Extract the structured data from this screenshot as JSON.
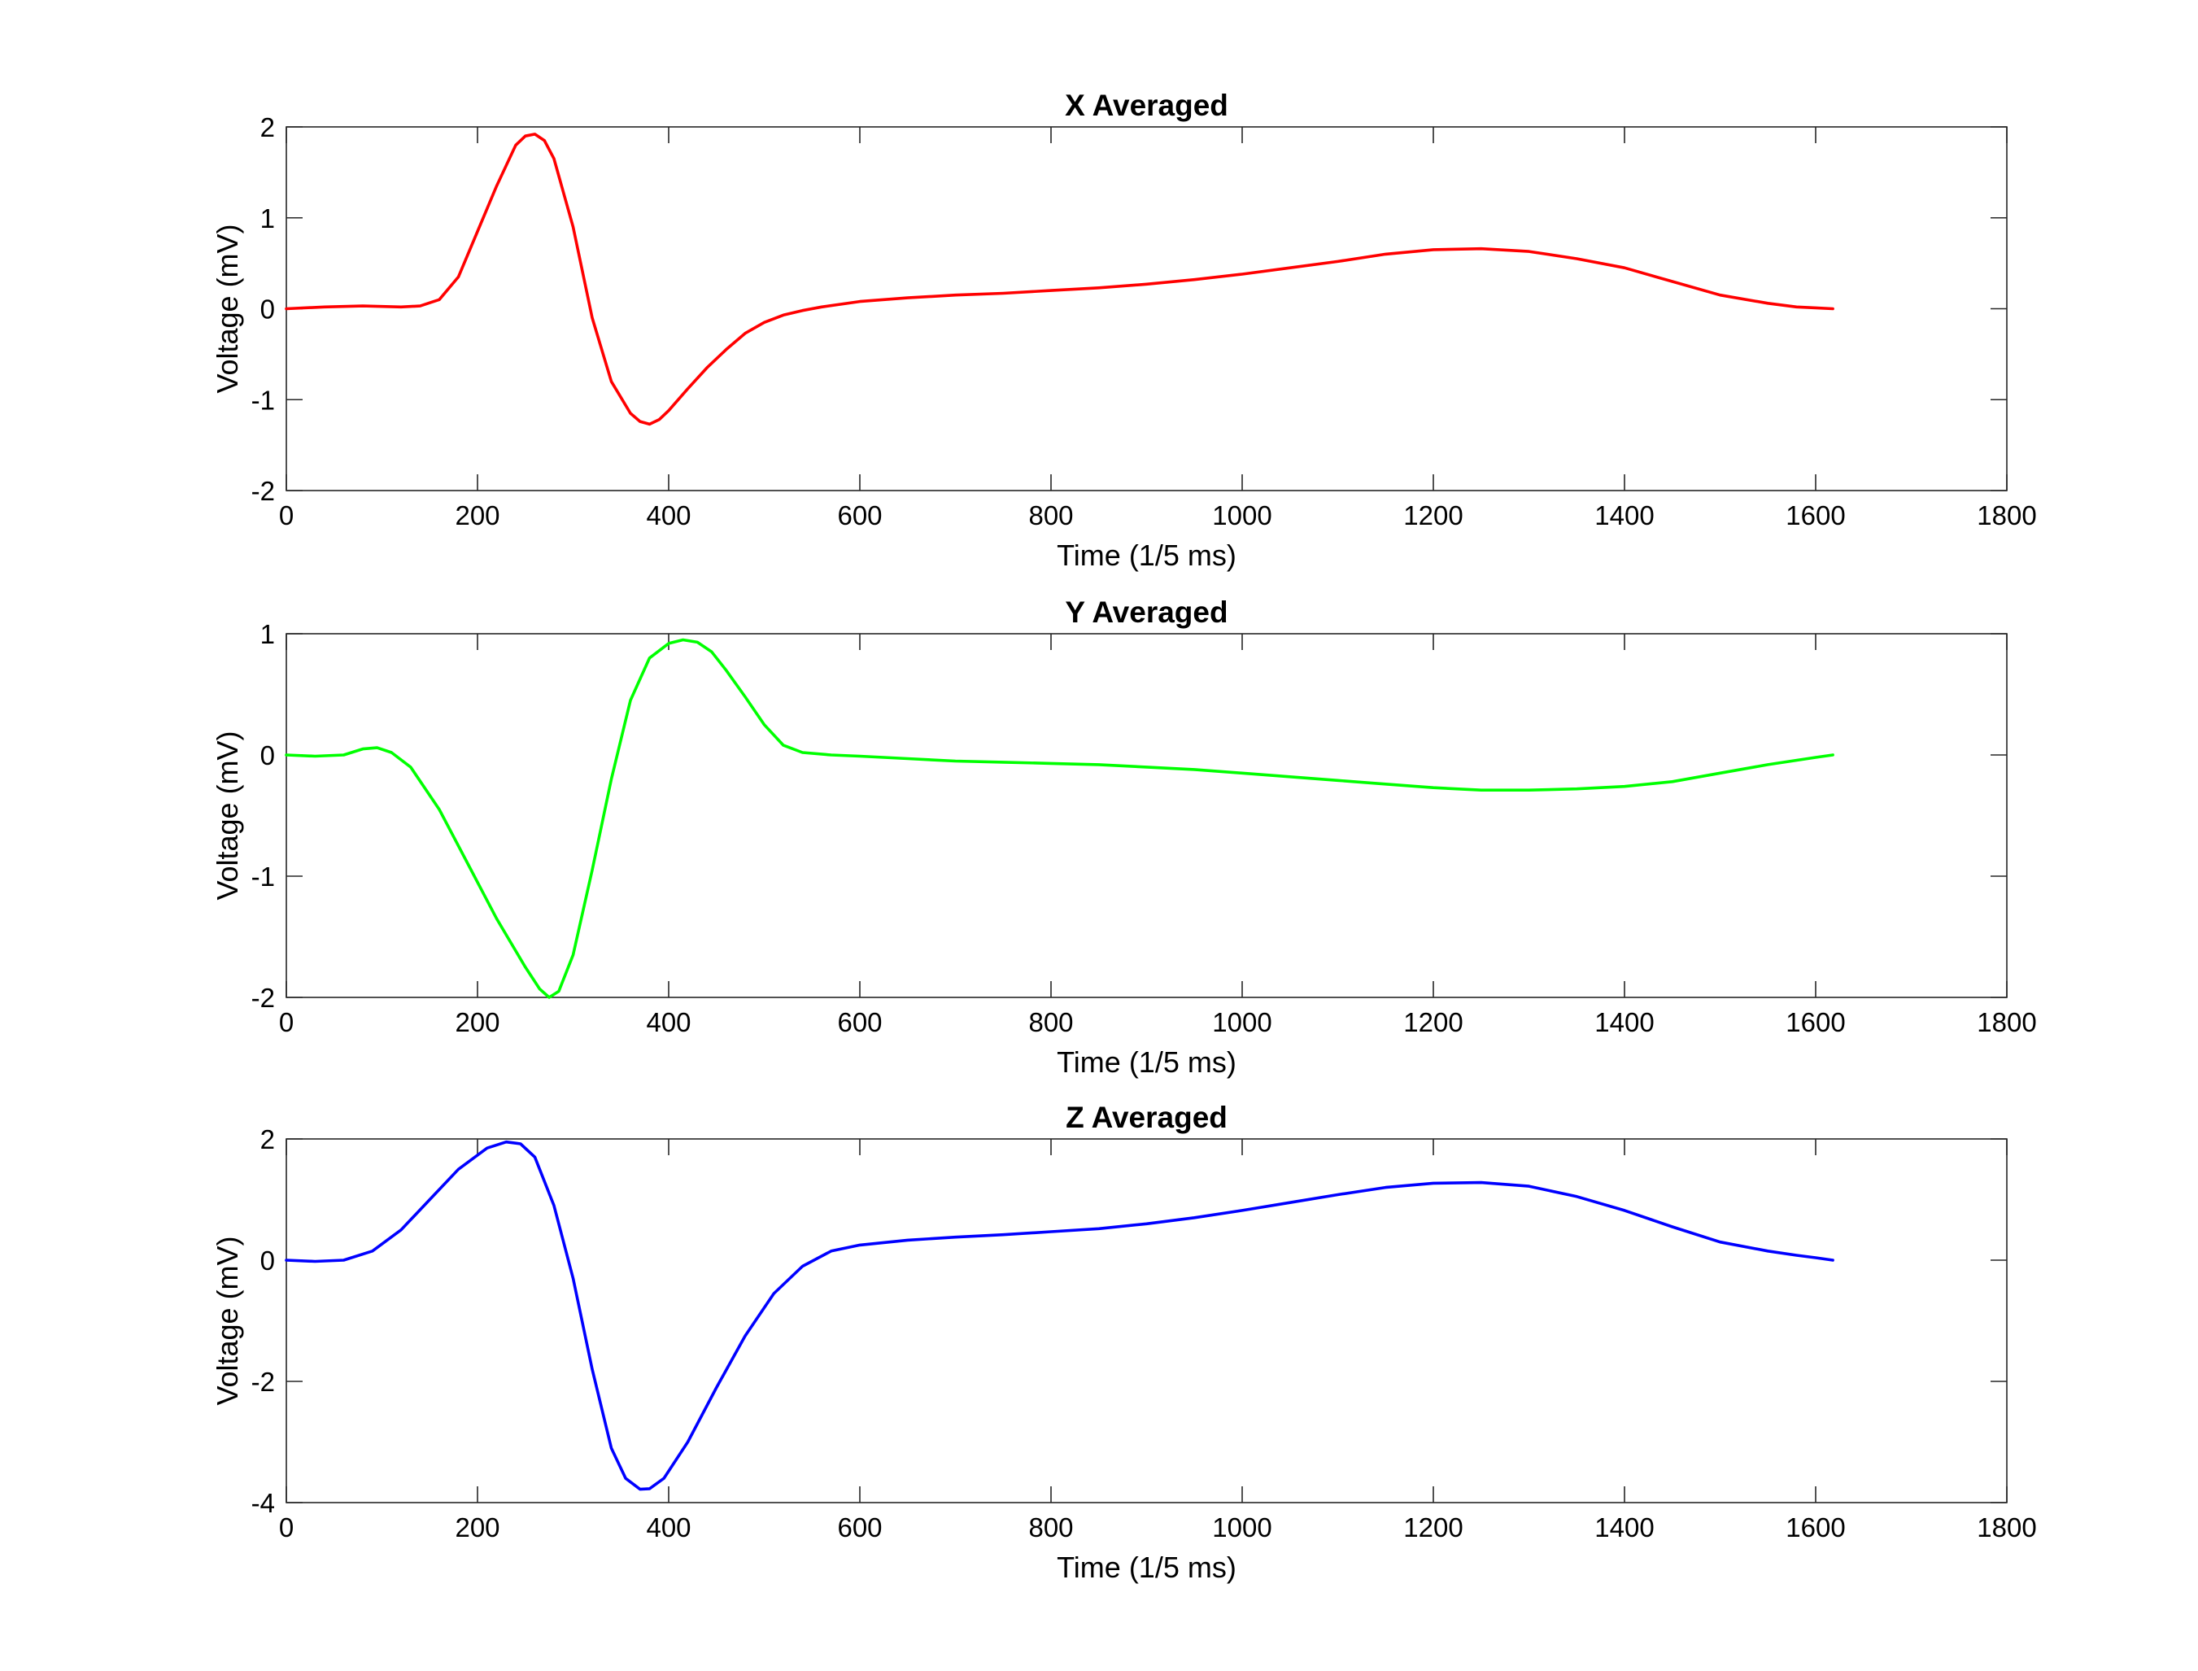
{
  "chart_data": [
    {
      "type": "line",
      "title": "X Averaged",
      "xlabel": "Time (1/5 ms)",
      "ylabel": "Voltage (mV)",
      "xlim": [
        0,
        1800
      ],
      "ylim": [
        -2,
        2
      ],
      "xticks": [
        0,
        200,
        400,
        600,
        800,
        1000,
        1200,
        1400,
        1600,
        1800
      ],
      "yticks": [
        -2,
        -1,
        0,
        1,
        2
      ],
      "color": "#ff0000",
      "series": [
        {
          "x": [
            0,
            40,
            80,
            120,
            140,
            160,
            180,
            200,
            220,
            240,
            250,
            260,
            270,
            280,
            300,
            320,
            340,
            360,
            370,
            380,
            390,
            400,
            420,
            440,
            460,
            480,
            500,
            520,
            540,
            560,
            600,
            650,
            700,
            750,
            800,
            850,
            900,
            950,
            1000,
            1050,
            1100,
            1150,
            1200,
            1250,
            1300,
            1350,
            1400,
            1450,
            1500,
            1550,
            1580,
            1600,
            1618
          ],
          "y": [
            0.0,
            0.02,
            0.03,
            0.02,
            0.03,
            0.1,
            0.35,
            0.85,
            1.35,
            1.8,
            1.9,
            1.92,
            1.85,
            1.65,
            0.9,
            -0.1,
            -0.8,
            -1.15,
            -1.24,
            -1.27,
            -1.22,
            -1.12,
            -0.88,
            -0.65,
            -0.45,
            -0.27,
            -0.15,
            -0.07,
            -0.02,
            0.02,
            0.08,
            0.12,
            0.15,
            0.17,
            0.2,
            0.23,
            0.27,
            0.32,
            0.38,
            0.45,
            0.52,
            0.6,
            0.65,
            0.66,
            0.63,
            0.55,
            0.45,
            0.3,
            0.15,
            0.06,
            0.02,
            0.01,
            0.0
          ]
        }
      ]
    },
    {
      "type": "line",
      "title": "Y Averaged",
      "xlabel": "Time (1/5 ms)",
      "ylabel": "Voltage (mV)",
      "xlim": [
        0,
        1800
      ],
      "ylim": [
        -2,
        1
      ],
      "xticks": [
        0,
        200,
        400,
        600,
        800,
        1000,
        1200,
        1400,
        1600,
        1800
      ],
      "yticks": [
        -2,
        -1,
        0,
        1
      ],
      "color": "#00ff00",
      "series": [
        {
          "x": [
            0,
            30,
            60,
            80,
            95,
            110,
            130,
            160,
            190,
            220,
            250,
            265,
            275,
            285,
            300,
            320,
            340,
            360,
            380,
            400,
            415,
            430,
            445,
            460,
            480,
            500,
            520,
            540,
            570,
            600,
            650,
            700,
            750,
            800,
            850,
            900,
            950,
            1000,
            1050,
            1100,
            1150,
            1200,
            1250,
            1300,
            1350,
            1400,
            1450,
            1500,
            1550,
            1600,
            1618
          ],
          "y": [
            0.0,
            -0.01,
            0.0,
            0.05,
            0.06,
            0.02,
            -0.1,
            -0.45,
            -0.9,
            -1.35,
            -1.75,
            -1.93,
            -2.0,
            -1.95,
            -1.65,
            -0.95,
            -0.2,
            0.45,
            0.8,
            0.92,
            0.95,
            0.93,
            0.85,
            0.7,
            0.48,
            0.25,
            0.08,
            0.02,
            0.0,
            -0.01,
            -0.03,
            -0.05,
            -0.06,
            -0.07,
            -0.08,
            -0.1,
            -0.12,
            -0.15,
            -0.18,
            -0.21,
            -0.24,
            -0.27,
            -0.29,
            -0.29,
            -0.28,
            -0.26,
            -0.22,
            -0.15,
            -0.08,
            -0.02,
            0.0
          ]
        }
      ]
    },
    {
      "type": "line",
      "title": "Z Averaged",
      "xlabel": "Time (1/5 ms)",
      "ylabel": "Voltage (mV)",
      "xlim": [
        0,
        1800
      ],
      "ylim": [
        -4,
        2
      ],
      "xticks": [
        0,
        200,
        400,
        600,
        800,
        1000,
        1200,
        1400,
        1600,
        1800
      ],
      "yticks": [
        -4,
        -2,
        0,
        2
      ],
      "color": "#0000ff",
      "series": [
        {
          "x": [
            0,
            30,
            60,
            90,
            120,
            150,
            180,
            210,
            230,
            245,
            260,
            280,
            300,
            320,
            340,
            355,
            370,
            380,
            395,
            420,
            450,
            480,
            510,
            540,
            570,
            600,
            650,
            700,
            750,
            800,
            850,
            900,
            950,
            1000,
            1050,
            1100,
            1150,
            1200,
            1250,
            1300,
            1350,
            1400,
            1450,
            1500,
            1550,
            1580,
            1600,
            1618
          ],
          "y": [
            0.0,
            -0.02,
            0.0,
            0.15,
            0.5,
            1.0,
            1.5,
            1.85,
            1.95,
            1.92,
            1.7,
            0.9,
            -0.3,
            -1.8,
            -3.1,
            -3.6,
            -3.78,
            -3.77,
            -3.6,
            -3.0,
            -2.1,
            -1.25,
            -0.55,
            -0.1,
            0.15,
            0.25,
            0.33,
            0.38,
            0.42,
            0.47,
            0.52,
            0.6,
            0.7,
            0.82,
            0.95,
            1.08,
            1.2,
            1.27,
            1.28,
            1.22,
            1.05,
            0.82,
            0.55,
            0.3,
            0.15,
            0.08,
            0.04,
            0.0
          ]
        }
      ]
    }
  ]
}
